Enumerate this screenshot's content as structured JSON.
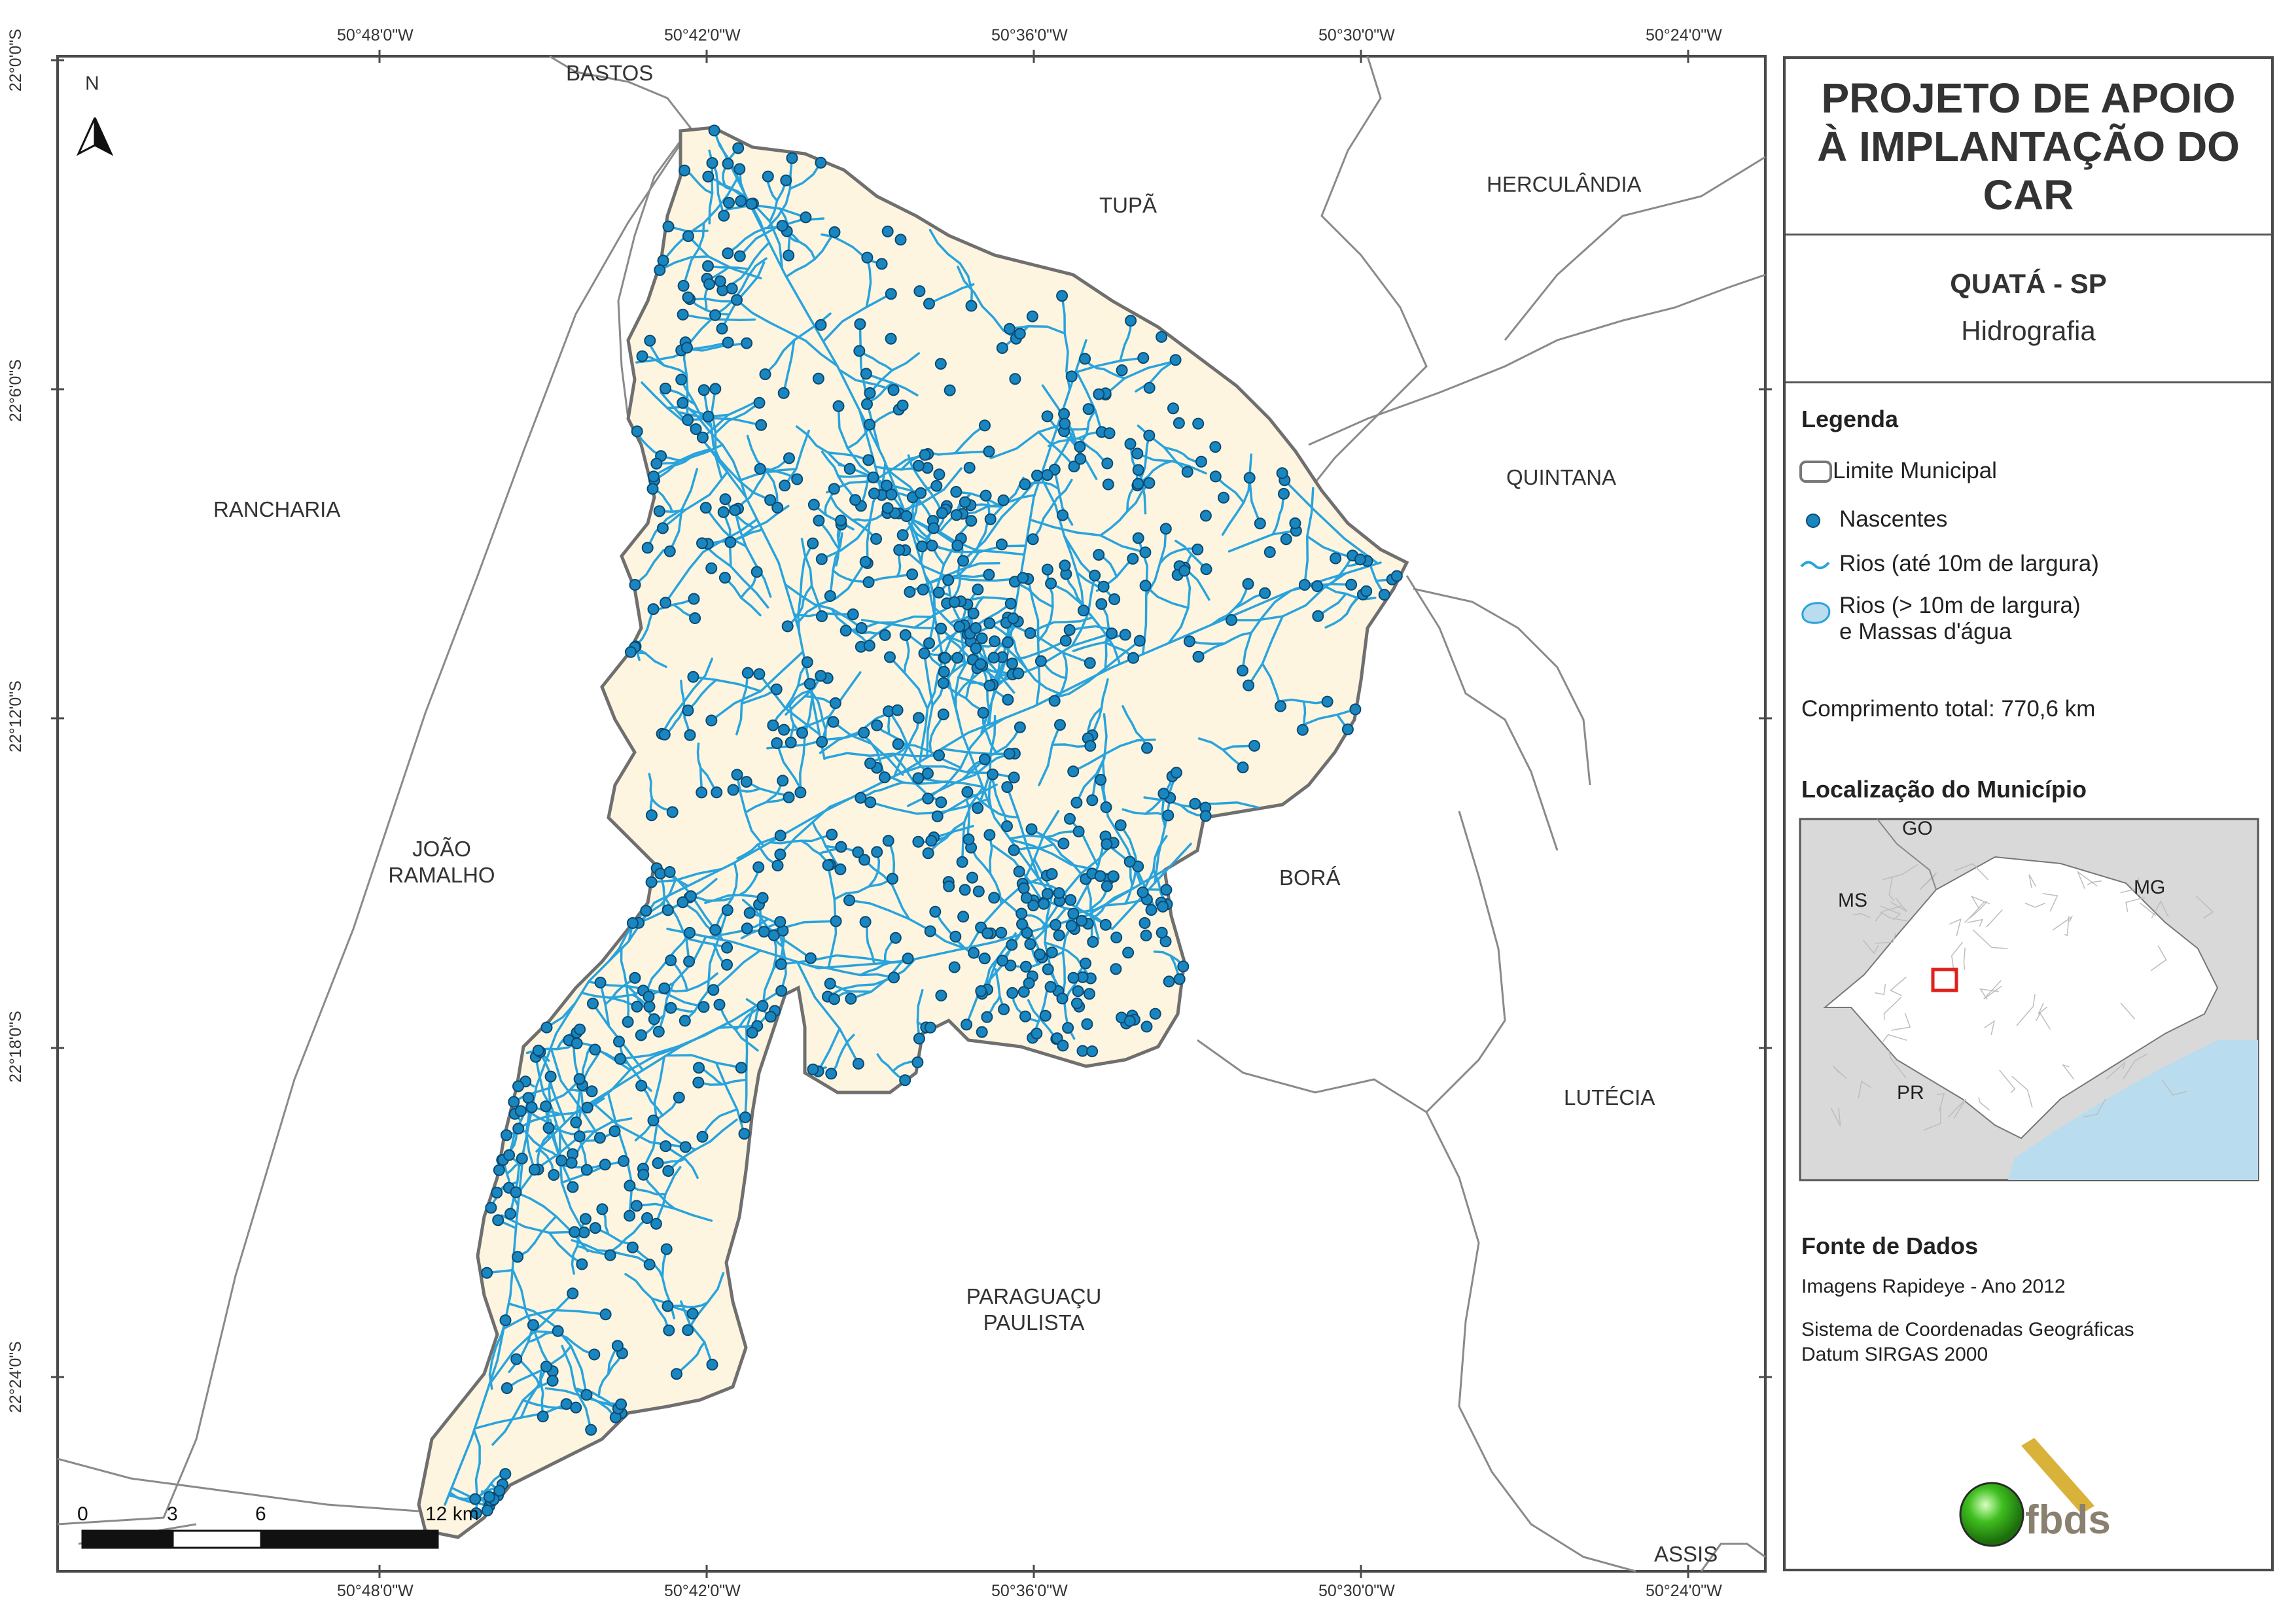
{
  "title": "PROJETO DE APOIO À IMPLANTAÇÃO DO CAR",
  "municipality": "QUATÁ - SP",
  "theme": "Hidrografia",
  "legend": {
    "heading": "Legenda",
    "items": [
      {
        "label": "Limite Municipal",
        "icon": "municipal-boundary-swatch"
      },
      {
        "label": "Nascentes",
        "icon": "spring-point-symbol"
      },
      {
        "label": "Rios (até 10m de largura)",
        "icon": "river-line-symbol"
      },
      {
        "label": "Rios (> 10m de largura)",
        "icon": "water-body-swatch"
      },
      {
        "label": "e Massas d'água",
        "icon": "water-body-swatch"
      }
    ],
    "total_length": "Comprimento total: 770,6 km"
  },
  "location": {
    "heading": "Localização do Município",
    "labels": [
      "GO",
      "MS",
      "MG",
      "PR"
    ]
  },
  "sources": {
    "heading": "Fonte de Dados",
    "lines": [
      "Imagens Rapideye - Ano 2012",
      "Sistema de Coordenadas Geográficas",
      "Datum SIRGAS 2000"
    ]
  },
  "logo_text": "fbds",
  "north": "N",
  "grid": {
    "lon_labels": [
      "50°48'0\"W",
      "50°42'0\"W",
      "50°36'0\"W",
      "50°30'0\"W",
      "50°24'0\"W"
    ],
    "lat_labels": [
      "22°0'0\"S",
      "22°6'0\"S",
      "22°12'0\"S",
      "22°18'0\"S",
      "22°24'0\"S"
    ]
  },
  "places": {
    "bastos": "BASTOS",
    "tupa": "TUPÃ",
    "herculandia": "HERCULÂNDIA",
    "quintana": "QUINTANA",
    "rancharia": "RANCHARIA",
    "joao_ramalho_1": "JOÃO",
    "joao_ramalho_2": "RAMALHO",
    "bora": "BORÁ",
    "lutecia": "LUTÉCIA",
    "paraguacu_1": "PARAGUAÇU",
    "paraguacu_2": "PAULISTA",
    "assis": "ASSIS"
  },
  "scale": {
    "labels": [
      "0",
      "3",
      "6",
      "12 km"
    ]
  },
  "colors": {
    "municipality_fill": "#fdf5e0",
    "spring": "#1a86c0",
    "river": "#29a3dc",
    "boundary": "#777777",
    "sea": "#b9dcef",
    "highlight": "#e0201b",
    "logo_green": "#3fbf1f",
    "logo_gold": "#d9b23a"
  }
}
